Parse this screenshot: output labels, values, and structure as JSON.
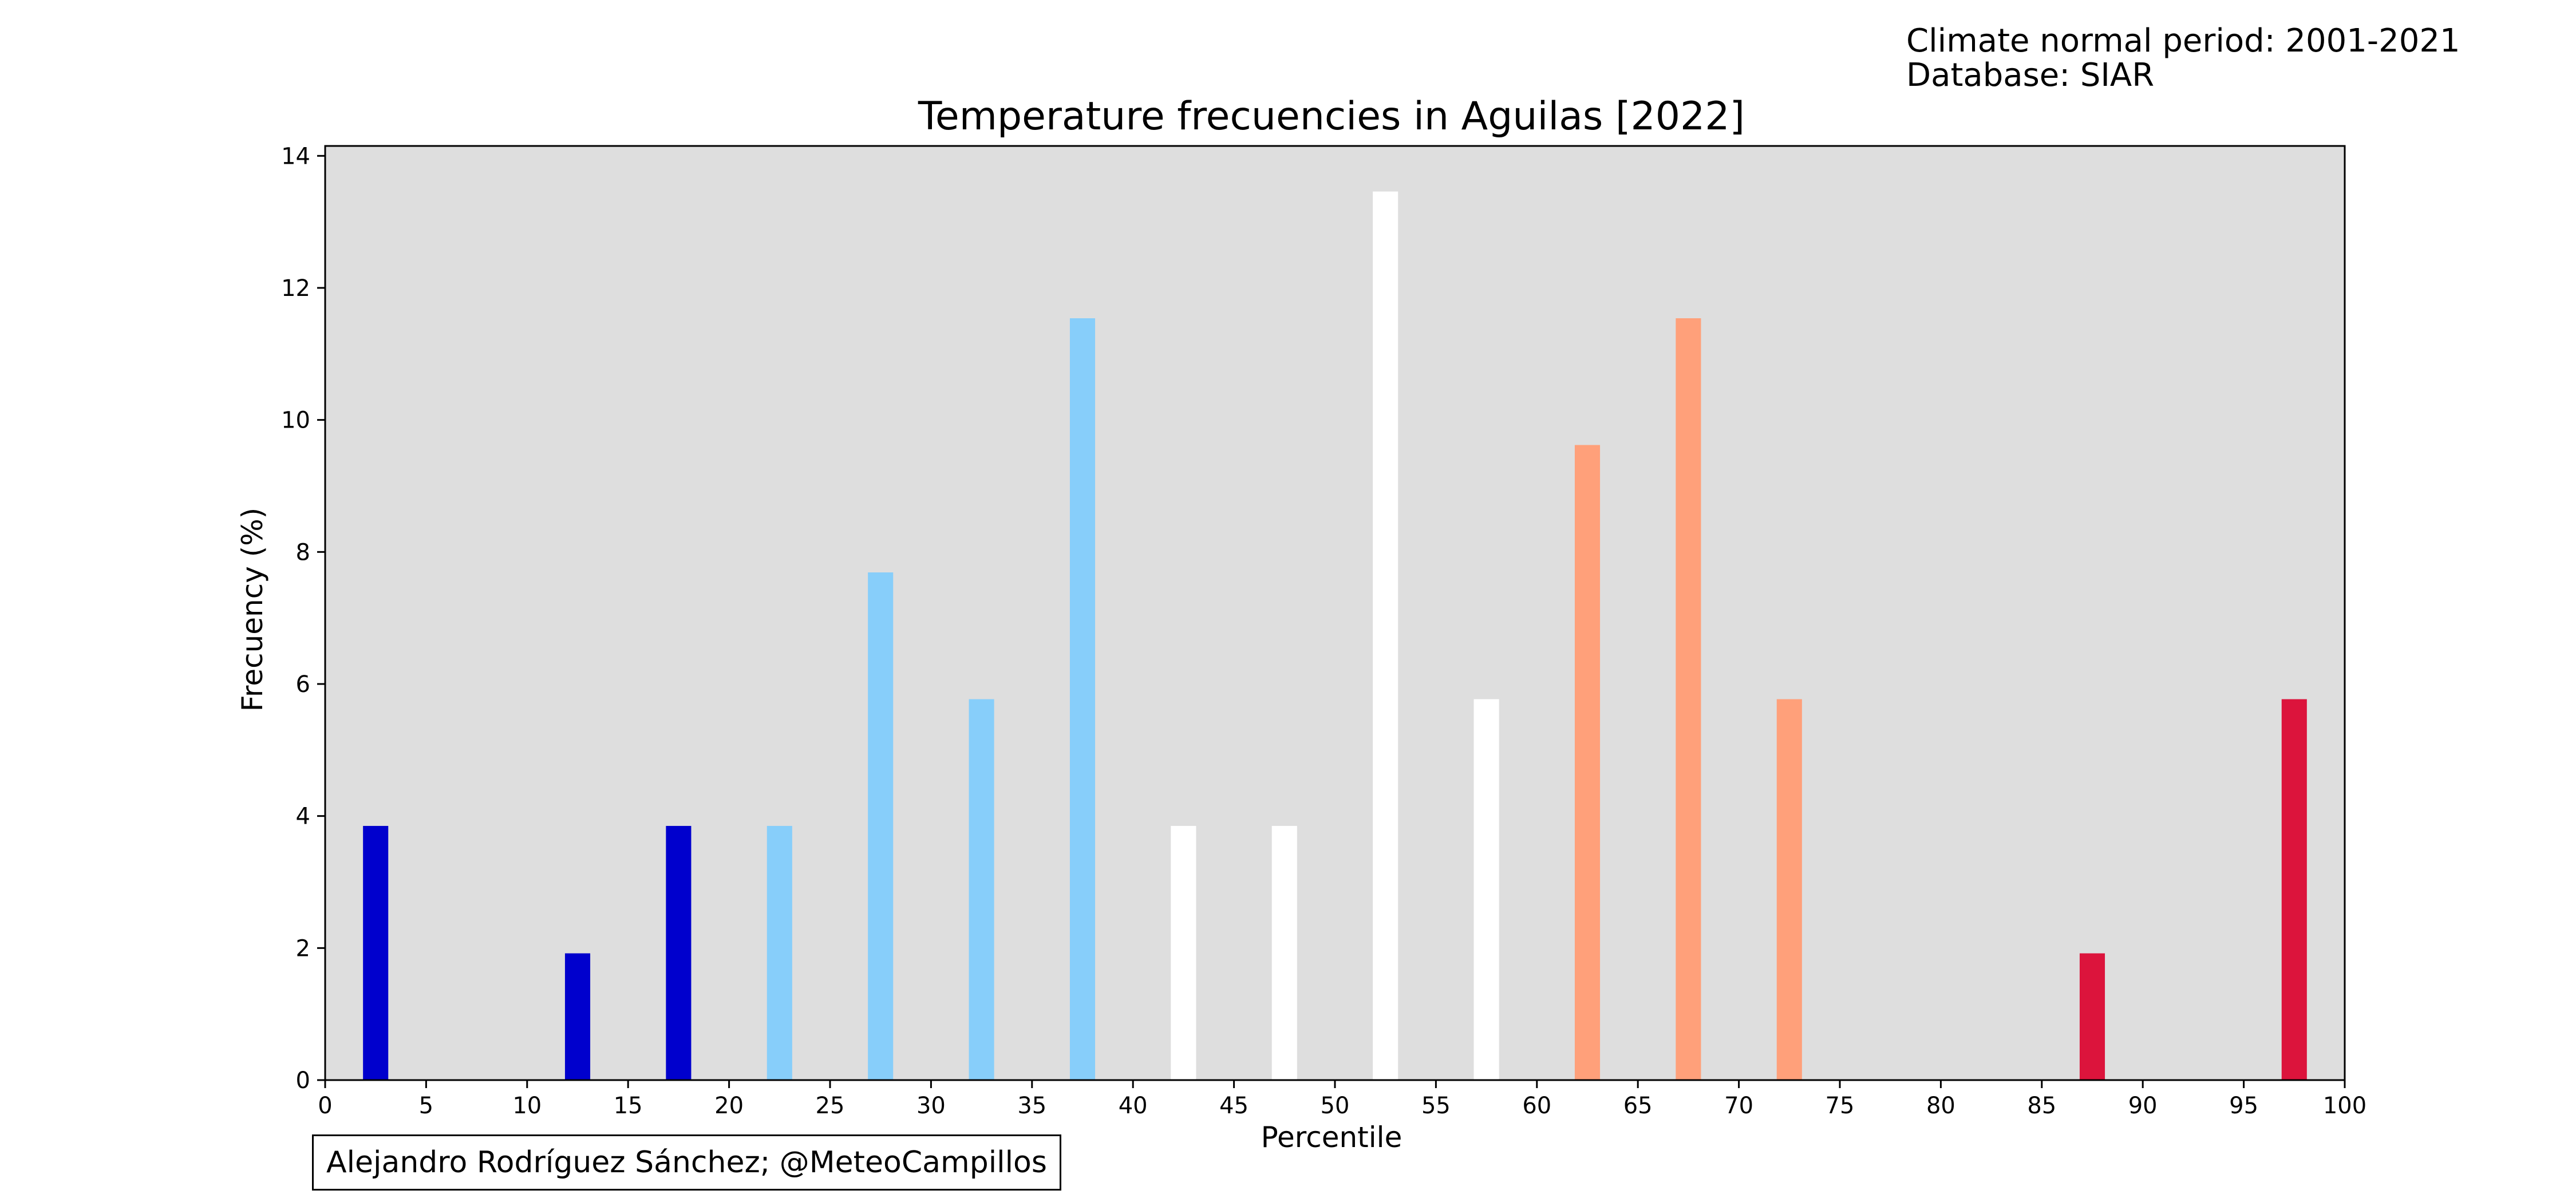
{
  "header": {
    "climate_period": "Climate normal period: 2001-2021",
    "database": "Database: SIAR"
  },
  "credit": "Alejandro Rodríguez Sánchez; @MeteoCampillos",
  "colors": {
    "plot_background": "#dedede",
    "very_cold": "#0000cd",
    "cold": "#87cefa",
    "normal": "#ffffff",
    "warm": "#ffa07a",
    "very_warm": "#dc143c"
  },
  "chart_data": {
    "type": "bar",
    "title": "Temperature frecuencies in Aguilas [2022]",
    "xlabel": "Percentile",
    "ylabel": "Frecuency (%)",
    "xlim": [
      0,
      100
    ],
    "ylim": [
      0,
      14.15
    ],
    "xticks": [
      0,
      5,
      10,
      15,
      20,
      25,
      30,
      35,
      40,
      45,
      50,
      55,
      60,
      65,
      70,
      75,
      80,
      85,
      90,
      95,
      100
    ],
    "yticks": [
      0,
      2,
      4,
      6,
      8,
      10,
      12,
      14
    ],
    "bar_width": 1.25,
    "grid": false,
    "bars": [
      {
        "x": 2.5,
        "value": 3.85,
        "color": "#0000cd"
      },
      {
        "x": 12.5,
        "value": 1.92,
        "color": "#0000cd"
      },
      {
        "x": 17.5,
        "value": 3.85,
        "color": "#0000cd"
      },
      {
        "x": 22.5,
        "value": 3.85,
        "color": "#87cefa"
      },
      {
        "x": 27.5,
        "value": 7.69,
        "color": "#87cefa"
      },
      {
        "x": 32.5,
        "value": 5.77,
        "color": "#87cefa"
      },
      {
        "x": 37.5,
        "value": 11.54,
        "color": "#87cefa"
      },
      {
        "x": 42.5,
        "value": 3.85,
        "color": "#ffffff"
      },
      {
        "x": 47.5,
        "value": 3.85,
        "color": "#ffffff"
      },
      {
        "x": 52.5,
        "value": 13.46,
        "color": "#ffffff"
      },
      {
        "x": 57.5,
        "value": 5.77,
        "color": "#ffffff"
      },
      {
        "x": 62.5,
        "value": 9.62,
        "color": "#ffa07a"
      },
      {
        "x": 67.5,
        "value": 11.54,
        "color": "#ffa07a"
      },
      {
        "x": 72.5,
        "value": 5.77,
        "color": "#ffa07a"
      },
      {
        "x": 87.5,
        "value": 1.92,
        "color": "#dc143c"
      },
      {
        "x": 97.5,
        "value": 5.77,
        "color": "#dc143c"
      }
    ]
  }
}
